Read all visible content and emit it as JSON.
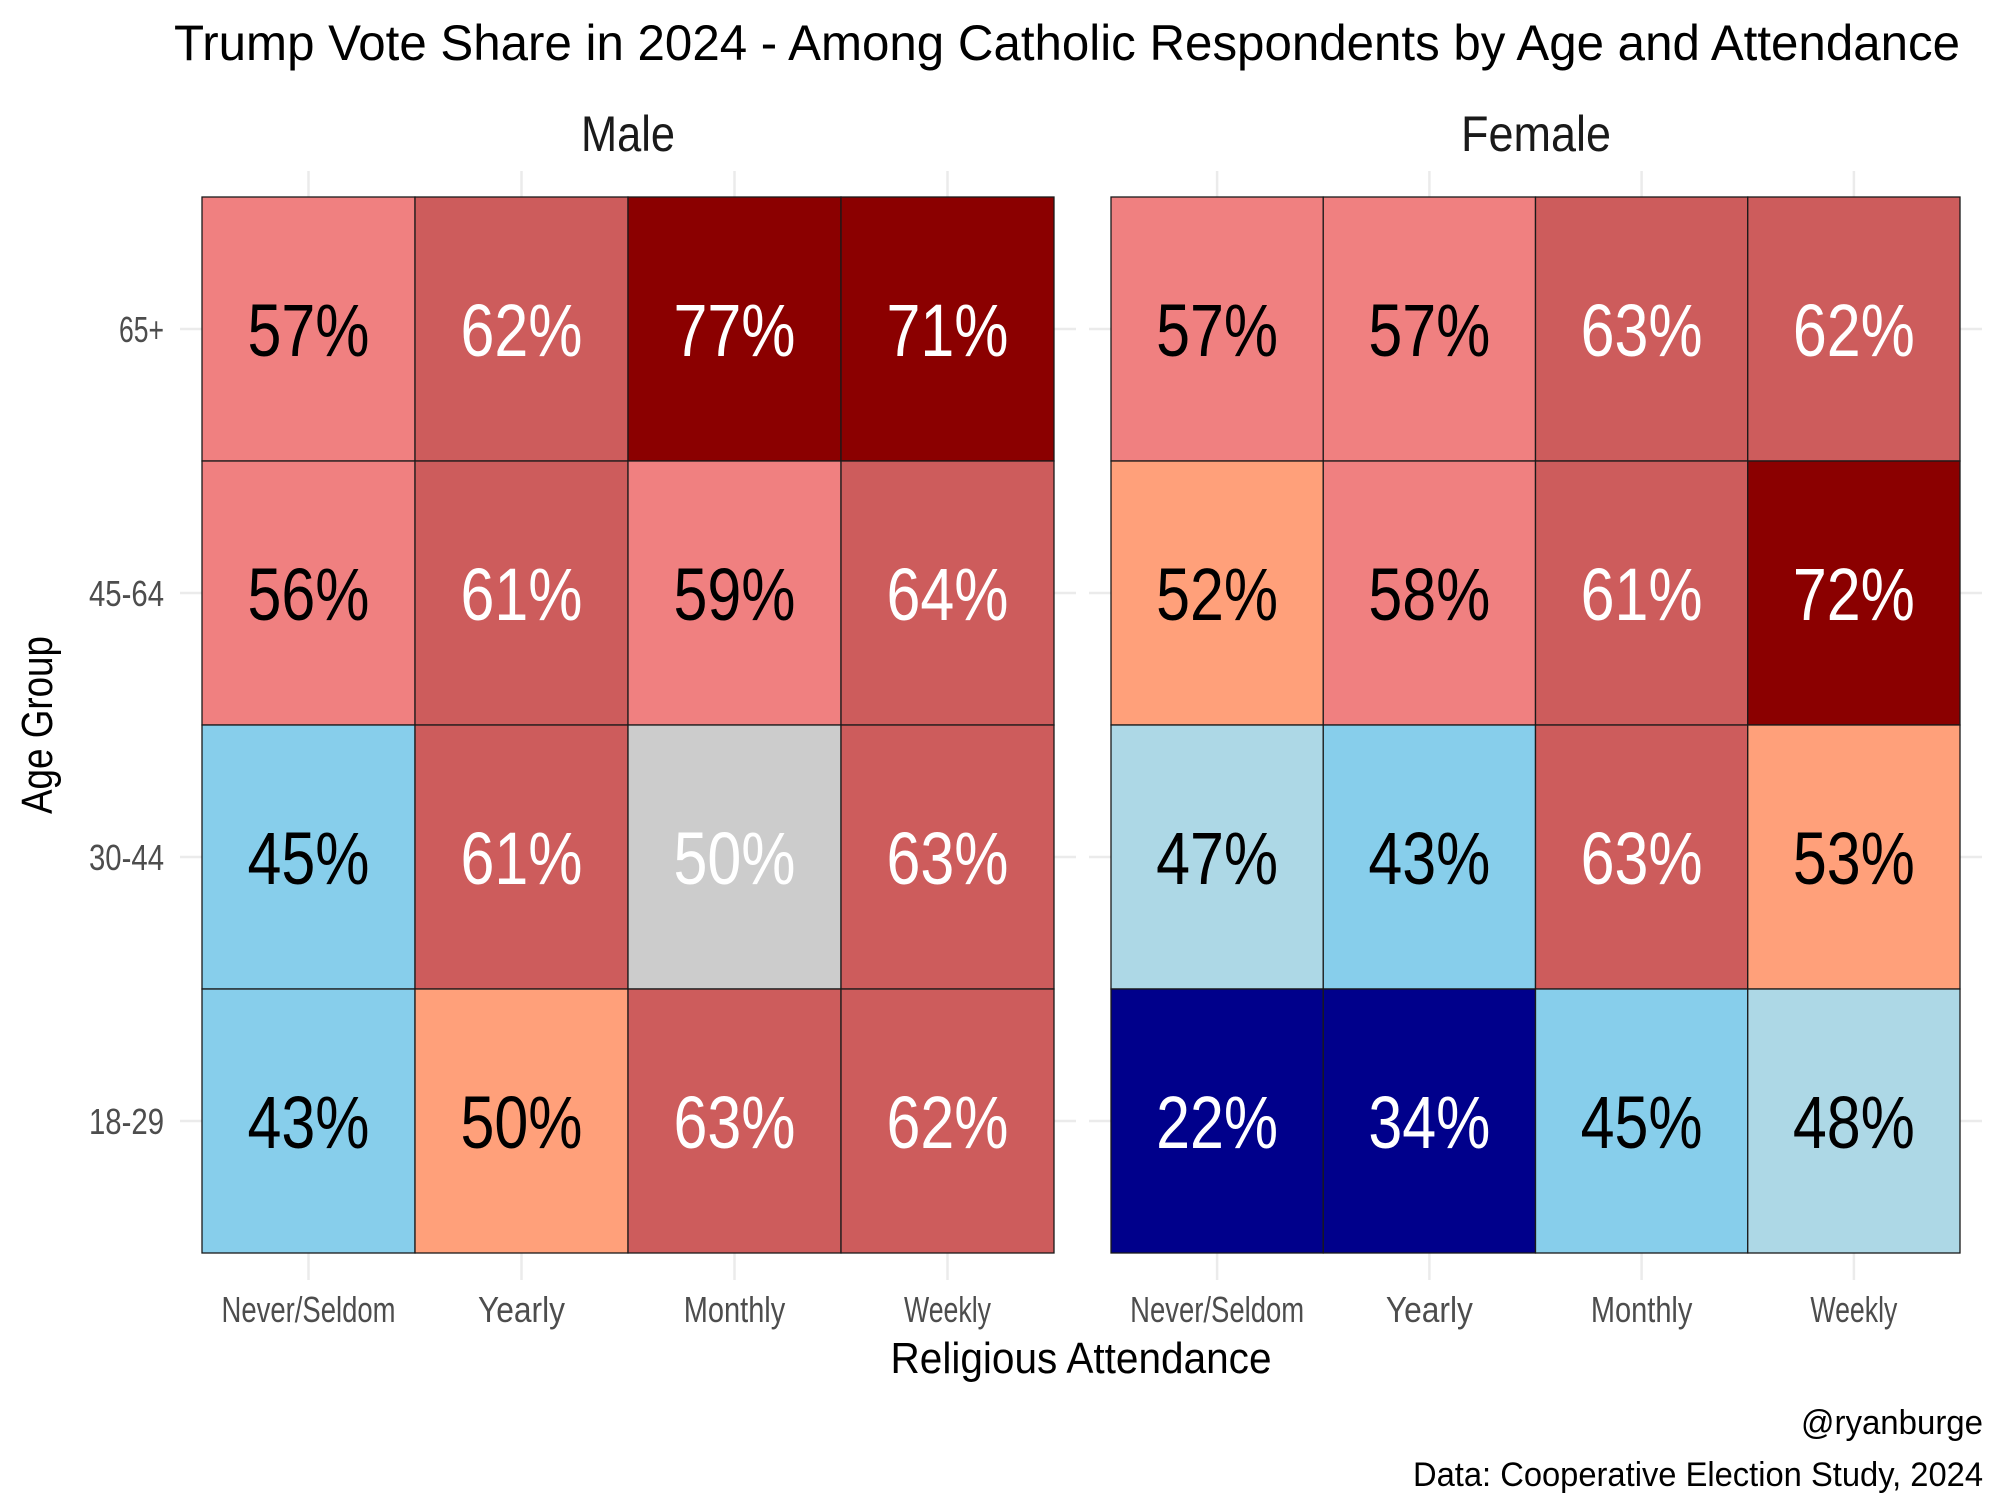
{
  "chart_data": {
    "type": "heatmap",
    "title": "Trump Vote Share in 2024 - Among Catholic Respondents by Age and Attendance",
    "xlabel": "Religious Attendance",
    "ylabel": "Age Group",
    "x_categories": [
      "Never/Seldom",
      "Yearly",
      "Monthly",
      "Weekly"
    ],
    "y_categories": [
      "18-29",
      "30-44",
      "45-64",
      "65+"
    ],
    "facets": [
      {
        "name": "Male",
        "rows": [
          {
            "age": "65+",
            "values": [
              57,
              62,
              77,
              71
            ]
          },
          {
            "age": "45-64",
            "values": [
              56,
              61,
              59,
              64
            ]
          },
          {
            "age": "30-44",
            "values": [
              45,
              61,
              50,
              63
            ]
          },
          {
            "age": "18-29",
            "values": [
              43,
              50,
              63,
              62
            ]
          }
        ],
        "fills": [
          [
            "#F08080",
            "#CD5C5C",
            "#8B0000",
            "#8B0000"
          ],
          [
            "#F08080",
            "#CD5C5C",
            "#F08080",
            "#CD5C5C"
          ],
          [
            "#87CEEB",
            "#CD5C5C",
            "#CCCCCC",
            "#CD5C5C"
          ],
          [
            "#87CEEB",
            "#FFA07A",
            "#CD5C5C",
            "#CD5C5C"
          ]
        ],
        "label_colors": [
          [
            "#000000",
            "#FFFFFF",
            "#FFFFFF",
            "#FFFFFF"
          ],
          [
            "#000000",
            "#FFFFFF",
            "#000000",
            "#FFFFFF"
          ],
          [
            "#000000",
            "#FFFFFF",
            "#FFFFFF",
            "#FFFFFF"
          ],
          [
            "#000000",
            "#000000",
            "#FFFFFF",
            "#FFFFFF"
          ]
        ]
      },
      {
        "name": "Female",
        "rows": [
          {
            "age": "65+",
            "values": [
              57,
              57,
              63,
              62
            ]
          },
          {
            "age": "45-64",
            "values": [
              52,
              58,
              61,
              72
            ]
          },
          {
            "age": "30-44",
            "values": [
              47,
              43,
              63,
              53
            ]
          },
          {
            "age": "18-29",
            "values": [
              22,
              34,
              45,
              48
            ]
          }
        ],
        "fills": [
          [
            "#F08080",
            "#F08080",
            "#CD5C5C",
            "#CD5C5C"
          ],
          [
            "#FFA07A",
            "#F08080",
            "#CD5C5C",
            "#8B0000"
          ],
          [
            "#ADD8E6",
            "#87CEEB",
            "#CD5C5C",
            "#FFA07A"
          ],
          [
            "#00008B",
            "#00008B",
            "#87CEEB",
            "#ADD8E6"
          ]
        ],
        "label_colors": [
          [
            "#000000",
            "#000000",
            "#FFFFFF",
            "#FFFFFF"
          ],
          [
            "#000000",
            "#000000",
            "#FFFFFF",
            "#FFFFFF"
          ],
          [
            "#000000",
            "#000000",
            "#FFFFFF",
            "#000000"
          ],
          [
            "#FFFFFF",
            "#FFFFFF",
            "#000000",
            "#000000"
          ]
        ]
      }
    ],
    "value_format": "percent",
    "legend": "none",
    "grid": true,
    "caption": [
      "@ryanburge",
      "Data: Cooperative Election Study, 2024"
    ]
  }
}
